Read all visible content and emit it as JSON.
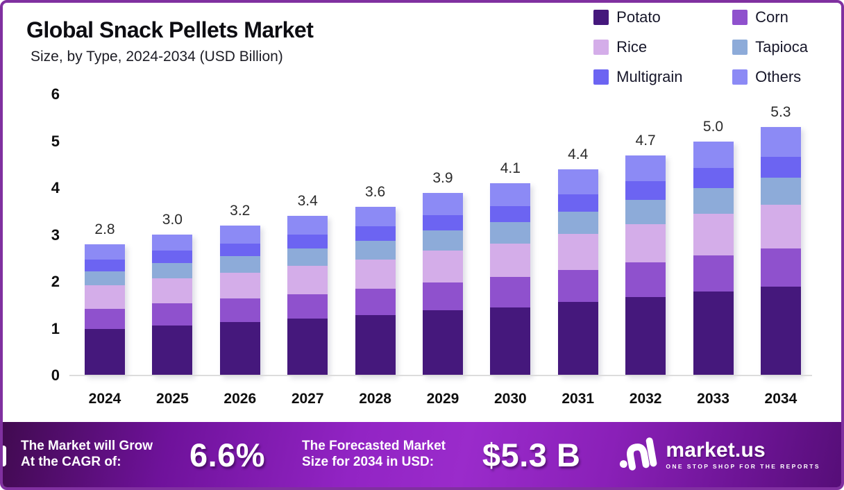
{
  "header": {
    "title": "Global Snack Pellets Market",
    "subtitle": "Size, by Type, 2024-2034 (USD Billion)"
  },
  "legend": {
    "items": [
      {
        "label": "Potato",
        "color": "#45187c"
      },
      {
        "label": "Corn",
        "color": "#8f51cd"
      },
      {
        "label": "Rice",
        "color": "#d4ade9"
      },
      {
        "label": "Tapioca",
        "color": "#8dabd9"
      },
      {
        "label": "Multigrain",
        "color": "#6c64f2"
      },
      {
        "label": "Others",
        "color": "#8c8af5"
      }
    ]
  },
  "chart_data": {
    "type": "bar",
    "stacked": true,
    "title": "Global Snack Pellets Market Size, by Type, 2024-2034 (USD Billion)",
    "categories": [
      "2024",
      "2025",
      "2026",
      "2027",
      "2028",
      "2029",
      "2030",
      "2031",
      "2032",
      "2033",
      "2034"
    ],
    "totals": [
      "2.8",
      "3.0",
      "3.2",
      "3.4",
      "3.6",
      "3.9",
      "4.1",
      "4.4",
      "4.7",
      "5.0",
      "5.3"
    ],
    "series": [
      {
        "name": "Potato",
        "color": "#45187c",
        "values": [
          1.0,
          1.07,
          1.14,
          1.21,
          1.29,
          1.39,
          1.46,
          1.57,
          1.68,
          1.79,
          1.89
        ]
      },
      {
        "name": "Corn",
        "color": "#8f51cd",
        "values": [
          0.43,
          0.47,
          0.5,
          0.53,
          0.56,
          0.6,
          0.64,
          0.68,
          0.73,
          0.78,
          0.82
        ]
      },
      {
        "name": "Rice",
        "color": "#d4ade9",
        "values": [
          0.49,
          0.53,
          0.56,
          0.6,
          0.63,
          0.68,
          0.72,
          0.77,
          0.82,
          0.88,
          0.93
        ]
      },
      {
        "name": "Tapioca",
        "color": "#8dabd9",
        "values": [
          0.31,
          0.33,
          0.35,
          0.37,
          0.4,
          0.43,
          0.45,
          0.48,
          0.52,
          0.55,
          0.58
        ]
      },
      {
        "name": "Multigrain",
        "color": "#6c64f2",
        "values": [
          0.24,
          0.26,
          0.27,
          0.29,
          0.31,
          0.33,
          0.35,
          0.37,
          0.4,
          0.43,
          0.45
        ]
      },
      {
        "name": "Others",
        "color": "#8c8af5",
        "values": [
          0.33,
          0.34,
          0.38,
          0.4,
          0.41,
          0.47,
          0.48,
          0.53,
          0.55,
          0.57,
          0.63
        ]
      }
    ],
    "xlabel": "",
    "ylabel": "",
    "ylim": [
      0,
      6
    ],
    "y_ticks": [
      0,
      1,
      2,
      3,
      4,
      5,
      6
    ],
    "grid": false,
    "legend_position": "top-right"
  },
  "banner": {
    "cagr_label_line1": "The Market will Grow",
    "cagr_label_line2": "At the CAGR of:",
    "cagr_value": "6.6%",
    "forecast_label_line1": "The Forecasted Market",
    "forecast_label_line2": "Size for 2034 in USD:",
    "forecast_value": "$5.3 B",
    "brand": {
      "name": "market.us",
      "tagline": "ONE STOP SHOP FOR THE REPORTS",
      "logo_icon": "marketus-wave-icon"
    }
  }
}
